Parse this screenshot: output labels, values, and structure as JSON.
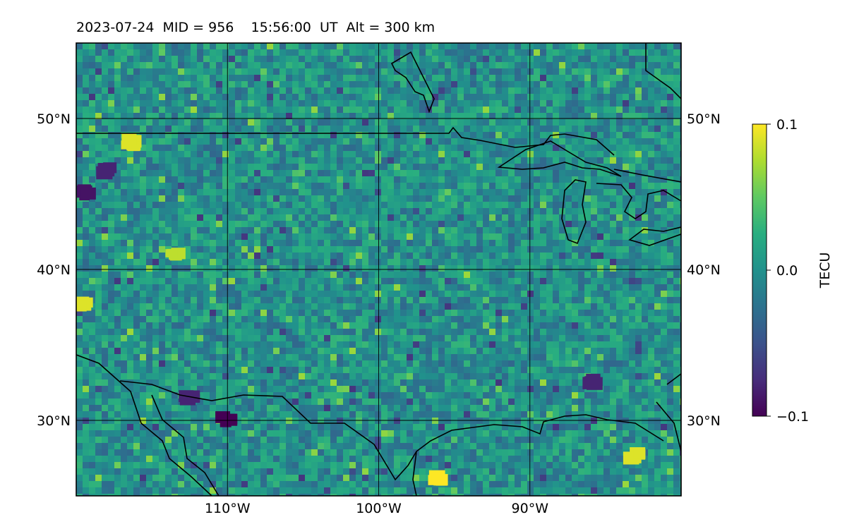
{
  "title": "2023-07-24  MID = 956    15:56:00  UT  Alt = 300 km",
  "chart_data": {
    "type": "heatmap",
    "title": "2023-07-24  MID = 956    15:56:00  UT  Alt = 300 km",
    "lon_range": [
      -120,
      -80
    ],
    "lat_range": [
      25,
      55
    ],
    "x_ticks": [
      {
        "value": -110,
        "label": "110°W"
      },
      {
        "value": -100,
        "label": "100°W"
      },
      {
        "value": -90,
        "label": "90°W"
      }
    ],
    "y_ticks": [
      {
        "value": 30,
        "label": "30°N"
      },
      {
        "value": 40,
        "label": "40°N"
      },
      {
        "value": 50,
        "label": "50°N"
      }
    ],
    "grid": true,
    "colorbar": {
      "label": "TECU",
      "min": -0.1,
      "max": 0.1,
      "colormap": "viridis",
      "ticks": [
        {
          "value": 0.1,
          "label": "0.1"
        },
        {
          "value": 0.0,
          "label": "0.0"
        },
        {
          "value": -0.1,
          "label": "−0.1"
        }
      ]
    },
    "background_color": "#2a8a8a",
    "features": [
      {
        "kind": "positive",
        "lon": -116.5,
        "lat": 48.3,
        "value": 0.09
      },
      {
        "kind": "positive",
        "lon": -113.5,
        "lat": 41.0,
        "value": 0.08
      },
      {
        "kind": "positive",
        "lon": -119.5,
        "lat": 37.5,
        "value": 0.09
      },
      {
        "kind": "positive",
        "lon": -96.0,
        "lat": 26.0,
        "value": 0.1
      },
      {
        "kind": "positive",
        "lon": -83.0,
        "lat": 27.5,
        "value": 0.09
      },
      {
        "kind": "negative",
        "lon": -118.0,
        "lat": 46.5,
        "value": -0.08
      },
      {
        "kind": "negative",
        "lon": -119.5,
        "lat": 45.0,
        "value": -0.09
      },
      {
        "kind": "negative",
        "lon": -110.0,
        "lat": 30.0,
        "value": -0.1
      },
      {
        "kind": "negative",
        "lon": -112.5,
        "lat": 31.5,
        "value": -0.08
      },
      {
        "kind": "negative",
        "lon": -86.0,
        "lat": 32.5,
        "value": -0.08
      }
    ]
  }
}
